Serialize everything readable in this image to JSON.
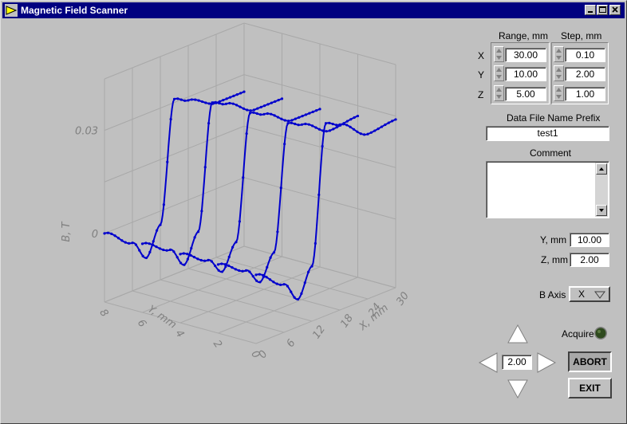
{
  "window": {
    "title": "Magnetic Field Scanner",
    "title_bar_color": "#000080",
    "app_icon": "labview-vi-icon"
  },
  "range": {
    "header": "Range, mm",
    "x": "30.00",
    "y": "10.00",
    "z": "5.00"
  },
  "step": {
    "header": "Step, mm",
    "x": "0.10",
    "y": "2.00",
    "z": "1.00"
  },
  "axis_labels": {
    "x": "X",
    "y": "Y",
    "z": "Z"
  },
  "file_prefix": {
    "label": "Data File Name Prefix",
    "value": "test1"
  },
  "comment": {
    "label": "Comment",
    "value": ""
  },
  "position": {
    "y_label": "Y, mm",
    "y_value": "10.00",
    "z_label": "Z, mm",
    "z_value": "2.00"
  },
  "b_axis": {
    "label": "B Axis",
    "value": "X"
  },
  "acquire": {
    "label": "Acquire",
    "led_color": "#2e4a1e"
  },
  "step_control": {
    "value": "2.00"
  },
  "buttons": {
    "abort": "ABORT",
    "exit": "EXIT"
  },
  "chart_data": {
    "type": "line",
    "title": "",
    "zlabel": "B, T",
    "xlabel": "X, mm",
    "ylabel": "Y, mm",
    "x_ticks": [
      "30",
      "24",
      "18",
      "12",
      "6",
      "0"
    ],
    "y_ticks": [
      "8",
      "6",
      "4",
      "2",
      "0"
    ],
    "z_ticks": [
      "0.03",
      "0"
    ],
    "series_color": "#0000cc",
    "series": [
      {
        "y": 0,
        "x": [
          0,
          6,
          9,
          12,
          15,
          18,
          24,
          30
        ],
        "b": [
          0.0,
          -0.006,
          -0.012,
          -0.004,
          0.036,
          0.034,
          0.028,
          0.029
        ]
      },
      {
        "y": 2,
        "x": [
          0,
          6,
          9,
          12,
          15,
          18,
          24,
          30
        ],
        "b": [
          0.0,
          -0.005,
          -0.01,
          -0.003,
          0.033,
          0.031,
          0.026,
          0.027
        ]
      },
      {
        "y": 4,
        "x": [
          0,
          6,
          9,
          12,
          15,
          18,
          24,
          30
        ],
        "b": [
          0.0,
          -0.005,
          -0.01,
          -0.003,
          0.033,
          0.031,
          0.026,
          0.026
        ]
      },
      {
        "y": 6,
        "x": [
          0,
          6,
          9,
          12,
          15,
          18,
          24,
          30
        ],
        "b": [
          0.0,
          -0.005,
          -0.011,
          -0.003,
          0.033,
          0.031,
          0.026,
          0.026
        ]
      },
      {
        "y": 8,
        "x": [
          0,
          6,
          9,
          12,
          15,
          18,
          24,
          30
        ],
        "b": [
          0.0,
          -0.006,
          -0.012,
          -0.004,
          0.031,
          0.029,
          0.025,
          0.025
        ]
      }
    ]
  }
}
